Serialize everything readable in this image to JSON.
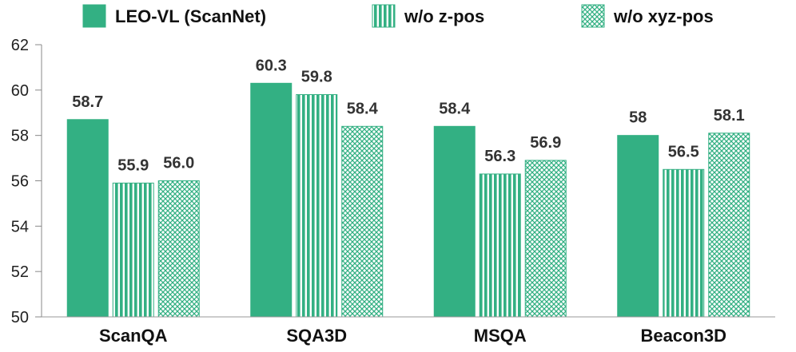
{
  "chart_data": {
    "type": "bar",
    "title": "",
    "xlabel": "",
    "ylabel": "",
    "ylim": [
      50,
      62
    ],
    "yticks": [
      50,
      52,
      54,
      56,
      58,
      60,
      62
    ],
    "grid": false,
    "legend_position": "top",
    "categories": [
      "ScanQA",
      "SQA3D",
      "MSQA",
      "Beacon3D"
    ],
    "series": [
      {
        "name": "LEO-VL (ScanNet)",
        "pattern": "solid",
        "color": "#33b083",
        "values": [
          58.7,
          60.3,
          58.4,
          58.0
        ],
        "labels": [
          "58.7",
          "60.3",
          "58.4",
          "58"
        ]
      },
      {
        "name": "w/o z-pos",
        "pattern": "vertical-stripes",
        "color": "#33b083",
        "values": [
          55.9,
          59.8,
          56.3,
          56.5
        ],
        "labels": [
          "55.9",
          "59.8",
          "56.3",
          "56.5"
        ]
      },
      {
        "name": "w/o xyz-pos",
        "pattern": "crosshatch",
        "color": "#33b083",
        "values": [
          56.0,
          58.4,
          56.9,
          58.1
        ],
        "labels": [
          "56.0",
          "58.4",
          "56.9",
          "58.1"
        ]
      }
    ]
  }
}
